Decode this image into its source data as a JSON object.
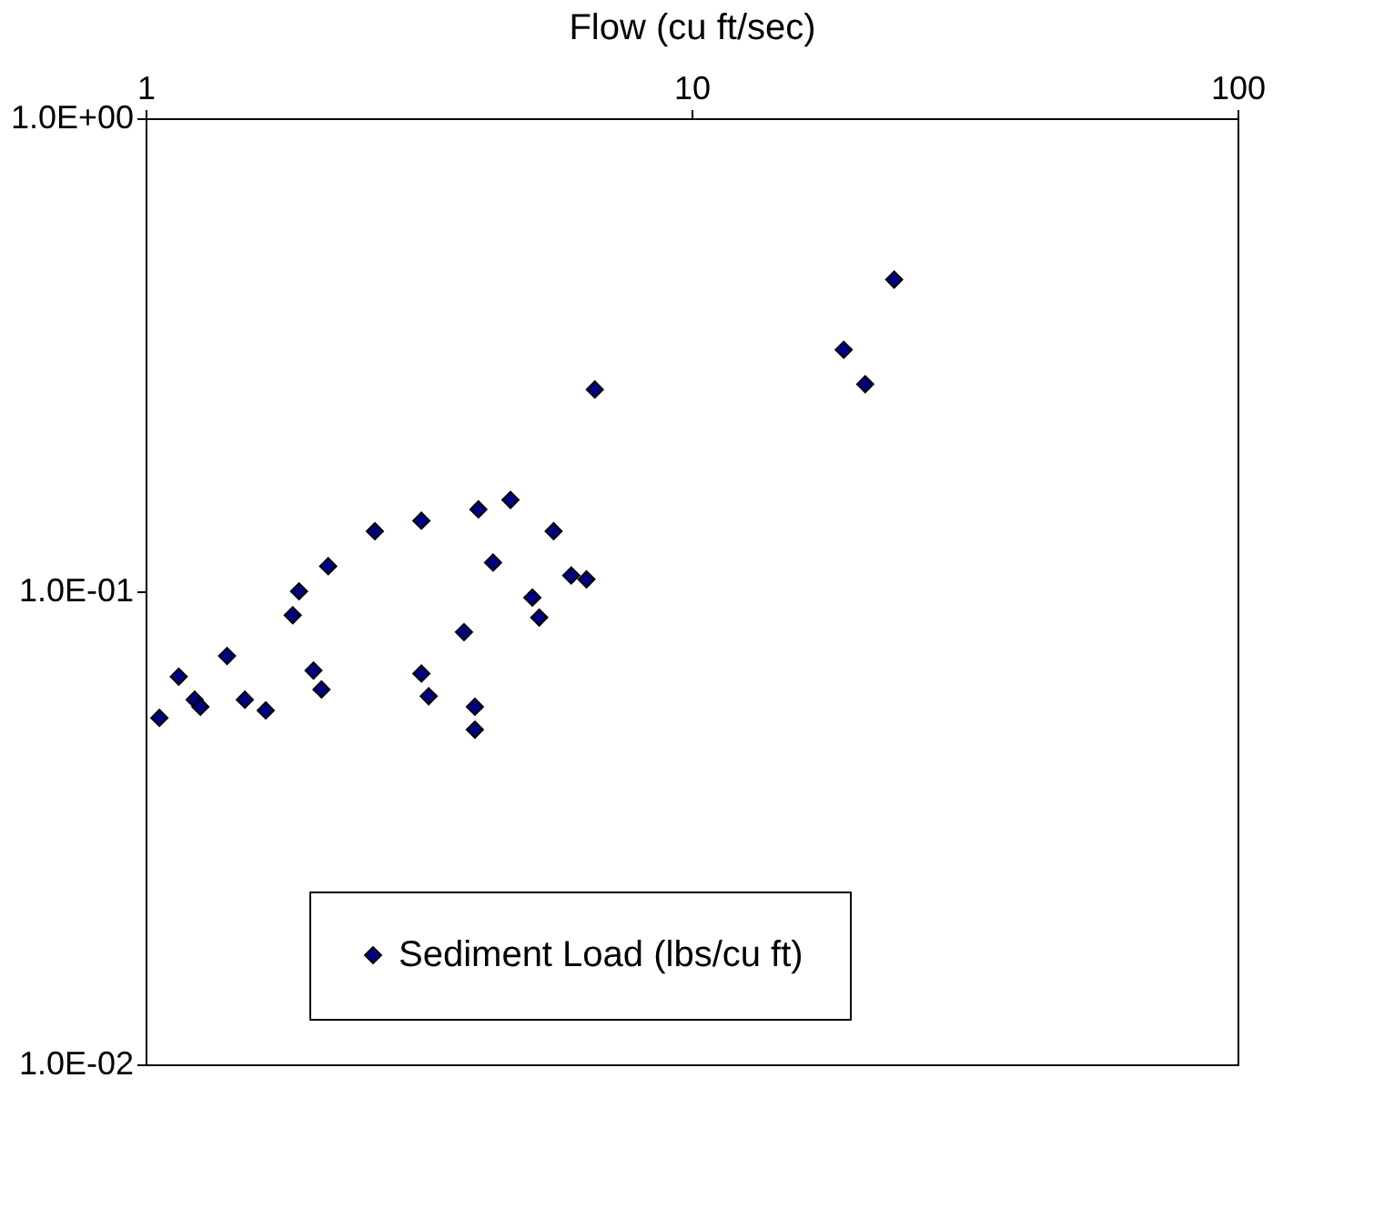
{
  "chart_data": {
    "type": "scatter",
    "xlabel": "Flow (cu ft/sec)",
    "x": [
      1.06,
      1.15,
      1.23,
      1.26,
      1.41,
      1.52,
      1.66,
      1.86,
      1.91,
      2.03,
      2.1,
      2.16,
      2.63,
      3.2,
      3.2,
      3.3,
      3.83,
      4.01,
      4.01,
      4.07,
      4.33,
      4.66,
      5.11,
      5.26,
      5.59,
      6.02,
      6.42,
      6.65,
      19.0,
      20.8,
      23.5
    ],
    "series": [
      {
        "name": "Sediment Load (lbs/cu ft)",
        "color": "#000080",
        "values": [
          0.054,
          0.066,
          0.059,
          0.057,
          0.073,
          0.059,
          0.056,
          0.089,
          0.1,
          0.068,
          0.062,
          0.113,
          0.134,
          0.141,
          0.067,
          0.06,
          0.082,
          0.057,
          0.051,
          0.149,
          0.115,
          0.156,
          0.097,
          0.088,
          0.134,
          0.108,
          0.106,
          0.267,
          0.324,
          0.274,
          0.456
        ]
      }
    ],
    "xlim": [
      1,
      100
    ],
    "xticks": [
      1,
      10,
      100
    ],
    "ylim": [
      0.01,
      1
    ],
    "yticks": [
      {
        "value": 0.01,
        "label": "1.0E-02"
      },
      {
        "value": 0.1,
        "label": "1.0E-01"
      },
      {
        "value": 1,
        "label": "1.0E+00"
      }
    ],
    "log": "xy",
    "grid": false,
    "legend": "bottom",
    "marker": "diamond"
  }
}
